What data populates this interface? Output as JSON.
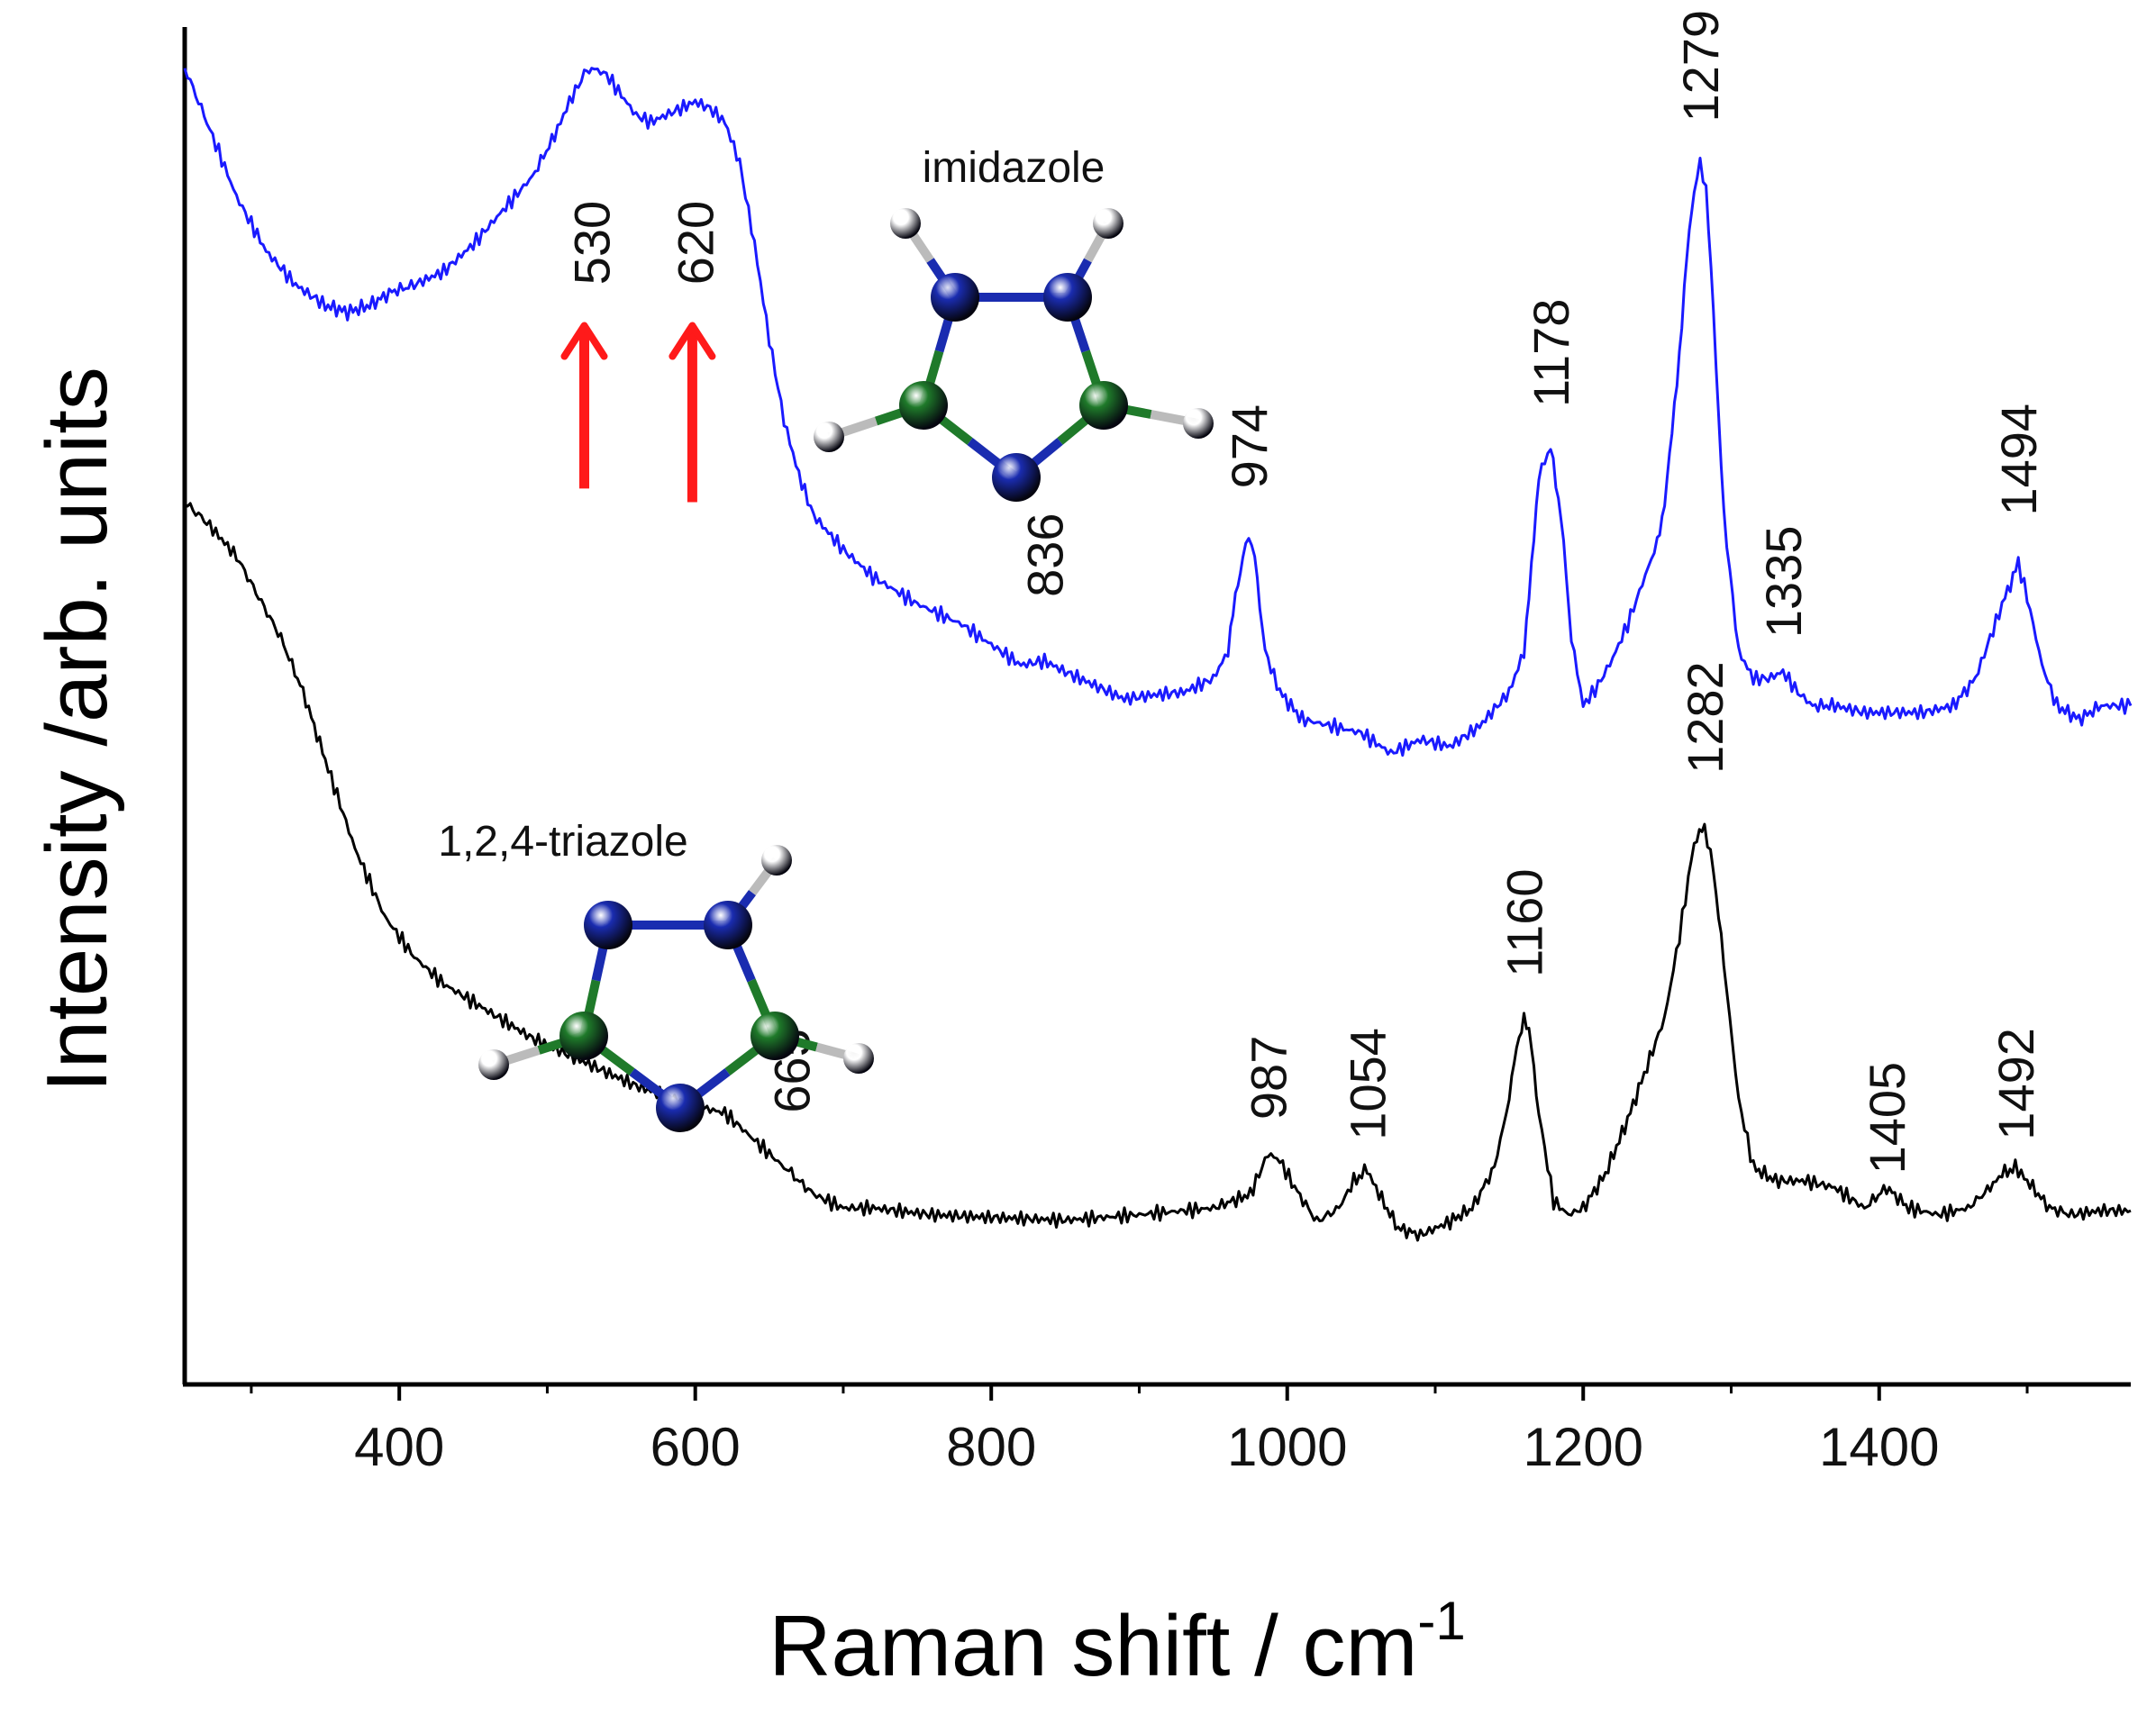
{
  "chart_data": {
    "type": "line",
    "xlabel": "Raman shift / cm",
    "xlabel_sup": "-1",
    "ylabel": "Intensity /arb. units",
    "xlim": [
      255,
      1570
    ],
    "ylim": [
      0,
      100
    ],
    "xticks": [
      "400",
      "600",
      "800",
      "1000",
      "1200",
      "1400"
    ],
    "yticks": [],
    "grid": false,
    "series": [
      {
        "name": "imidazole",
        "color": "#1a1aff",
        "x": [
          255,
          270,
          290,
          310,
          330,
          350,
          365,
          380,
          395,
          410,
          430,
          450,
          470,
          490,
          505,
          515,
          525,
          530,
          540,
          550,
          560,
          570,
          580,
          590,
          600,
          610,
          620,
          630,
          640,
          650,
          660,
          670,
          680,
          700,
          720,
          750,
          780,
          800,
          820,
          836,
          850,
          870,
          890,
          910,
          930,
          950,
          960,
          965,
          970,
          974,
          978,
          985,
          995,
          1010,
          1030,
          1050,
          1070,
          1090,
          1110,
          1130,
          1150,
          1160,
          1165,
          1170,
          1178,
          1185,
          1192,
          1200,
          1210,
          1220,
          1230,
          1240,
          1250,
          1255,
          1260,
          1265,
          1270,
          1275,
          1279,
          1283,
          1288,
          1295,
          1305,
          1315,
          1325,
          1335,
          1345,
          1355,
          1370,
          1390,
          1410,
          1430,
          1450,
          1465,
          1475,
          1485,
          1494,
          1500,
          1510,
          1520,
          1535,
          1550,
          1570
        ],
        "y": [
          97,
          93,
          87.5,
          83.5,
          81,
          79.5,
          79,
          79.5,
          80.5,
          81,
          82,
          84,
          86.5,
          89,
          92,
          94.5,
          96.5,
          97,
          96.5,
          95,
          93.5,
          93,
          93.5,
          94,
          94.5,
          94,
          93,
          90,
          84,
          77,
          71,
          67,
          64,
          61.5,
          59.5,
          57.5,
          56,
          54.5,
          53,
          53.3,
          52.5,
          51.5,
          50.5,
          50.8,
          51,
          52,
          54,
          58,
          61,
          62.5,
          61,
          54,
          51,
          49,
          48.5,
          48,
          46.5,
          47.5,
          47,
          48.5,
          51,
          54,
          60,
          67,
          69,
          64,
          55,
          50,
          51.5,
          53.5,
          56,
          59,
          62,
          65,
          70,
          76,
          83,
          88,
          90,
          88,
          79,
          64,
          54,
          52,
          52,
          52.5,
          51,
          50,
          50,
          49.5,
          49.5,
          49.5,
          50,
          52,
          55,
          58,
          60.5,
          58,
          53,
          50,
          49,
          50,
          50
        ]
      },
      {
        "name": "1,2,4-triazole",
        "color": "#000000",
        "x": [
          255,
          270,
          290,
          305,
          320,
          335,
          350,
          370,
          390,
          410,
          430,
          460,
          490,
          520,
          560,
          600,
          620,
          640,
          660,
          665,
          680,
          700,
          720,
          760,
          800,
          850,
          900,
          950,
          975,
          987,
          995,
          1005,
          1020,
          1035,
          1045,
          1054,
          1062,
          1075,
          1090,
          1110,
          1125,
          1140,
          1150,
          1155,
          1160,
          1165,
          1170,
          1180,
          1190,
          1200,
          1215,
          1230,
          1245,
          1255,
          1265,
          1275,
          1282,
          1288,
          1295,
          1305,
          1315,
          1330,
          1350,
          1370,
          1390,
          1405,
          1420,
          1440,
          1460,
          1475,
          1483,
          1492,
          1500,
          1515,
          1530,
          1550,
          1570
        ],
        "y": [
          65,
          63.5,
          61,
          58,
          55,
          51,
          46,
          39.5,
          34.5,
          31.5,
          29.5,
          27.5,
          25.5,
          24,
          22,
          20.5,
          20,
          18,
          16,
          15.5,
          14,
          13,
          13,
          12.5,
          12.3,
          12.1,
          12.5,
          13,
          14,
          17,
          16.5,
          14.5,
          12,
          13,
          15,
          15.8,
          14,
          11.5,
          11,
          12,
          13,
          16,
          21,
          25,
          27,
          25,
          20,
          13.5,
          12.5,
          13,
          15.5,
          19.5,
          24,
          27,
          33,
          40,
          41,
          38,
          31,
          21,
          16,
          15,
          15,
          14.5,
          13,
          14.5,
          13,
          12.5,
          13,
          14.5,
          15.5,
          16,
          15,
          13,
          12.5,
          12.8,
          12.8
        ]
      }
    ],
    "peak_labels": [
      {
        "text": "530",
        "series": "imidazole",
        "x": 530,
        "y": 81
      },
      {
        "text": "620",
        "series": "imidazole",
        "x": 600,
        "y": 81
      },
      {
        "text": "836",
        "series": "imidazole",
        "x": 836,
        "y": 58
      },
      {
        "text": "974",
        "series": "imidazole",
        "x": 974,
        "y": 66
      },
      {
        "text": "1178",
        "series": "imidazole",
        "x": 1178,
        "y": 72
      },
      {
        "text": "1279",
        "series": "imidazole",
        "x": 1279,
        "y": 93
      },
      {
        "text": "1335",
        "series": "imidazole",
        "x": 1335,
        "y": 55
      },
      {
        "text": "1494",
        "series": "imidazole",
        "x": 1494,
        "y": 64
      },
      {
        "text": "665",
        "series": "1,2,4-triazole",
        "x": 665,
        "y": 20
      },
      {
        "text": "987",
        "series": "1,2,4-triazole",
        "x": 987,
        "y": 19.5
      },
      {
        "text": "1054",
        "series": "1,2,4-triazole",
        "x": 1054,
        "y": 18
      },
      {
        "text": "1160",
        "series": "1,2,4-triazole",
        "x": 1160,
        "y": 30
      },
      {
        "text": "1282",
        "series": "1,2,4-triazole",
        "x": 1282,
        "y": 45
      },
      {
        "text": "1405",
        "series": "1,2,4-triazole",
        "x": 1405,
        "y": 15.5
      },
      {
        "text": "1492",
        "series": "1,2,4-triazole",
        "x": 1492,
        "y": 18
      }
    ],
    "arrows": [
      {
        "x": 525,
        "y_from": 66,
        "y_to": 78,
        "color": "#ff1a1a"
      },
      {
        "x": 598,
        "y_from": 65,
        "y_to": 78,
        "color": "#ff1a1a"
      }
    ],
    "molecules": [
      {
        "name": "imidazole",
        "label": "imidazole"
      },
      {
        "name": "1,2,4-triazole",
        "label": "1,2,4-triazole"
      }
    ],
    "atom_colors": {
      "N": "#1a2cb0",
      "C": "#1f7a2a",
      "H": "#d8d8d8",
      "bond_N": "#1a2cb0",
      "bond_C": "#1f7a2a"
    }
  }
}
